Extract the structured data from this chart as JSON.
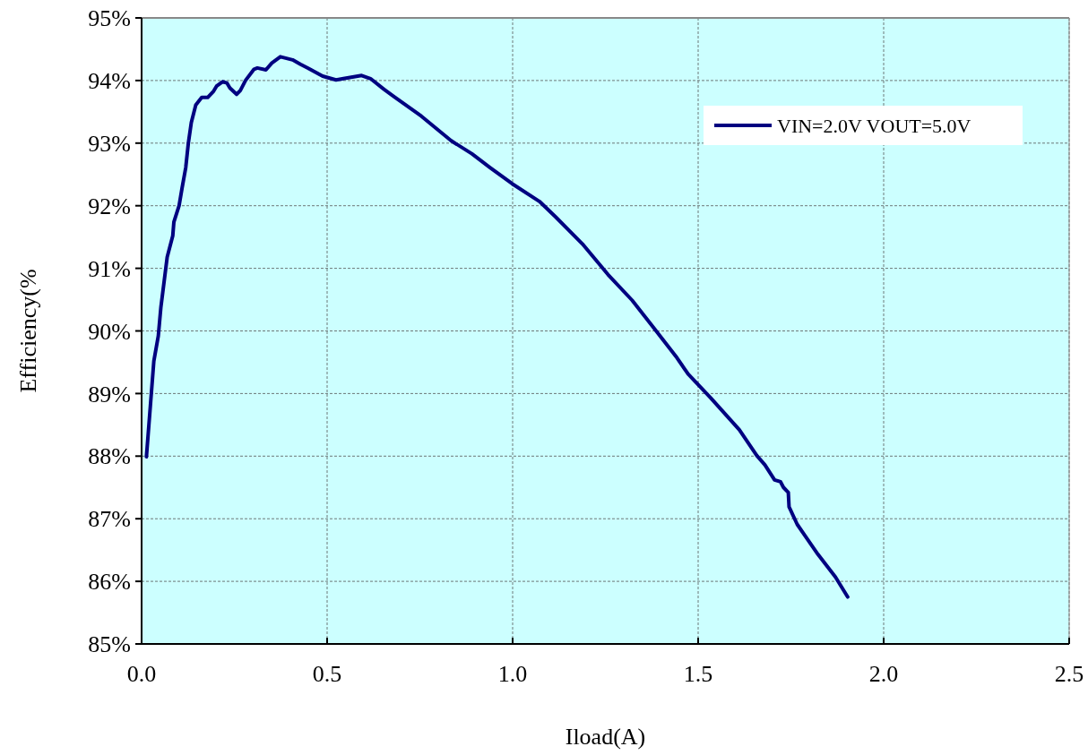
{
  "chart_data": {
    "type": "line",
    "xlabel": "Iload(A)",
    "ylabel": "Efficiency(%",
    "xlim": [
      0,
      2.5
    ],
    "ylim": [
      85,
      95
    ],
    "xticks": [
      {
        "value": 0,
        "label": "0.0"
      },
      {
        "value": 0.5,
        "label": "0.5"
      },
      {
        "value": 1,
        "label": "1.0"
      },
      {
        "value": 1.5,
        "label": "1.5"
      },
      {
        "value": 2,
        "label": "2.0"
      },
      {
        "value": 2.5,
        "label": "2.5"
      }
    ],
    "yticks": [
      {
        "value": 85,
        "label": "85%"
      },
      {
        "value": 86,
        "label": "86%"
      },
      {
        "value": 87,
        "label": "87%"
      },
      {
        "value": 88,
        "label": "88%"
      },
      {
        "value": 89,
        "label": "89%"
      },
      {
        "value": 90,
        "label": "90%"
      },
      {
        "value": 91,
        "label": "91%"
      },
      {
        "value": 92,
        "label": "92%"
      },
      {
        "value": 93,
        "label": "93%"
      },
      {
        "value": 94,
        "label": "94%"
      },
      {
        "value": 95,
        "label": "95%"
      }
    ],
    "grid": true,
    "legend": "top right",
    "marker": "none",
    "line_style": "solid",
    "series": [
      {
        "name": "VIN=2.0V VOUT=5.0V",
        "color": "#000080",
        "x": [
          0.013,
          0.033,
          0.045,
          0.052,
          0.069,
          0.084,
          0.087,
          0.101,
          0.109,
          0.119,
          0.126,
          0.134,
          0.146,
          0.162,
          0.178,
          0.194,
          0.202,
          0.218,
          0.23,
          0.238,
          0.256,
          0.266,
          0.28,
          0.303,
          0.312,
          0.335,
          0.351,
          0.374,
          0.407,
          0.428,
          0.448,
          0.488,
          0.524,
          0.544,
          0.593,
          0.617,
          0.653,
          0.681,
          0.754,
          0.834,
          0.89,
          0.939,
          0.999,
          1.072,
          1.116,
          1.188,
          1.257,
          1.322,
          1.383,
          1.443,
          1.473,
          1.534,
          1.611,
          1.658,
          1.68,
          1.706,
          1.722,
          1.73,
          1.743,
          1.745,
          1.767,
          1.788,
          1.823,
          1.87,
          1.903
        ],
        "values": [
          87.99,
          89.52,
          89.92,
          90.38,
          91.18,
          91.52,
          91.74,
          92.0,
          92.28,
          92.61,
          93.0,
          93.33,
          93.61,
          93.73,
          93.73,
          93.83,
          93.91,
          93.98,
          93.96,
          93.88,
          93.78,
          93.84,
          94.0,
          94.18,
          94.2,
          94.17,
          94.28,
          94.38,
          94.33,
          94.26,
          94.2,
          94.07,
          94.01,
          94.03,
          94.08,
          94.03,
          93.86,
          93.74,
          93.43,
          93.04,
          92.83,
          92.61,
          92.35,
          92.07,
          91.82,
          91.39,
          90.9,
          90.49,
          90.03,
          89.57,
          89.31,
          88.93,
          88.42,
          88.01,
          87.86,
          87.62,
          87.59,
          87.5,
          87.42,
          87.19,
          86.91,
          86.73,
          86.43,
          86.07,
          85.75
        ]
      }
    ]
  }
}
